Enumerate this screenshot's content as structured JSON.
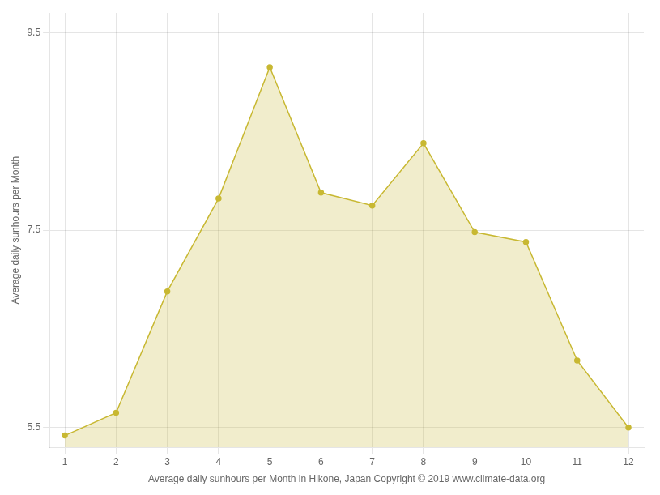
{
  "chart_data": {
    "type": "area",
    "xlabel": "Average daily sunhours per Month in Hikone, Japan Copyright © 2019 www.climate-data.org",
    "ylabel": "Average daily sunhours per Month",
    "x": [
      1,
      2,
      3,
      4,
      5,
      6,
      7,
      8,
      9,
      10,
      11,
      12
    ],
    "values": [
      5.42,
      5.65,
      6.88,
      7.82,
      9.15,
      7.88,
      7.75,
      8.38,
      7.48,
      7.38,
      6.18,
      5.5
    ],
    "color": "#c8b832",
    "marker": "circle",
    "xlim": [
      0.7,
      12.3
    ],
    "xticks": [
      1,
      2,
      3,
      4,
      5,
      6,
      7,
      8,
      9,
      10,
      11,
      12
    ],
    "ylim": [
      5.3,
      9.7
    ],
    "yticks": [
      5.5,
      7.5,
      9.5
    ],
    "grid": true
  }
}
